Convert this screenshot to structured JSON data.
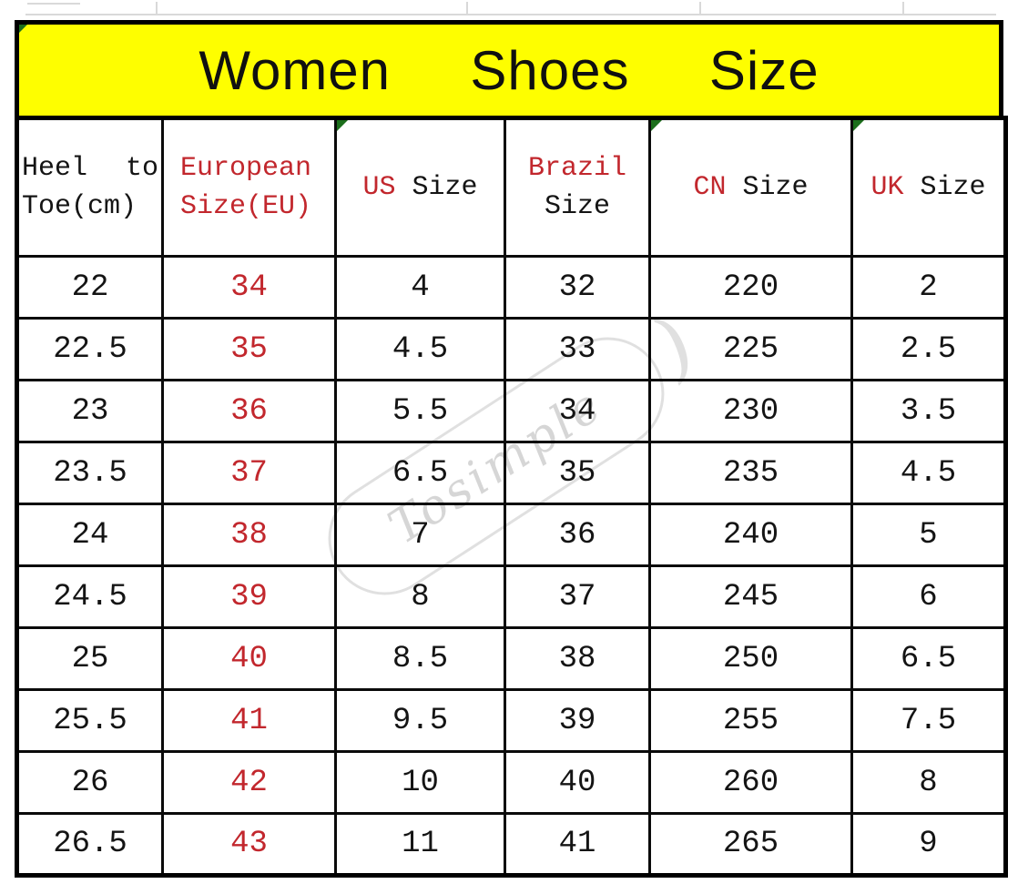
{
  "title": "Women  Shoes  Size",
  "colors": {
    "title_background": "#fefe00",
    "accent_red": "#c2272d",
    "text_black": "#141414",
    "border_black": "#000000",
    "error_marker_green": "#1b6e1b",
    "watermark_gray": "rgba(0,0,0,0.15)"
  },
  "table": {
    "headers": [
      {
        "word1": "Heel",
        "word2": "to",
        "line2": "Toe(cm)"
      },
      {
        "line1": "European",
        "line2": "Size(EU)"
      },
      {
        "accent": "US",
        "rest": " Size"
      },
      {
        "accent": "Brazil",
        "rest": "Size"
      },
      {
        "accent": "CN",
        "rest": " Size"
      },
      {
        "accent": "UK",
        "rest": " Size"
      }
    ],
    "rows": [
      [
        "22",
        "34",
        "4",
        "32",
        "220",
        "2"
      ],
      [
        "22.5",
        "35",
        "4.5",
        "33",
        "225",
        "2.5"
      ],
      [
        "23",
        "36",
        "5.5",
        "34",
        "230",
        "3.5"
      ],
      [
        "23.5",
        "37",
        "6.5",
        "35",
        "235",
        "4.5"
      ],
      [
        "24",
        "38",
        "7",
        "36",
        "240",
        "5"
      ],
      [
        "24.5",
        "39",
        "8",
        "37",
        "245",
        "6"
      ],
      [
        "25",
        "40",
        "8.5",
        "38",
        "250",
        "6.5"
      ],
      [
        "25.5",
        "41",
        "9.5",
        "39",
        "255",
        "7.5"
      ],
      [
        "26",
        "42",
        "10",
        "40",
        "260",
        "8"
      ],
      [
        "26.5",
        "43",
        "11",
        "41",
        "265",
        "9"
      ]
    ],
    "red_column_index": 1
  },
  "watermark": {
    "text": "Tosimple",
    "paren": ")"
  }
}
